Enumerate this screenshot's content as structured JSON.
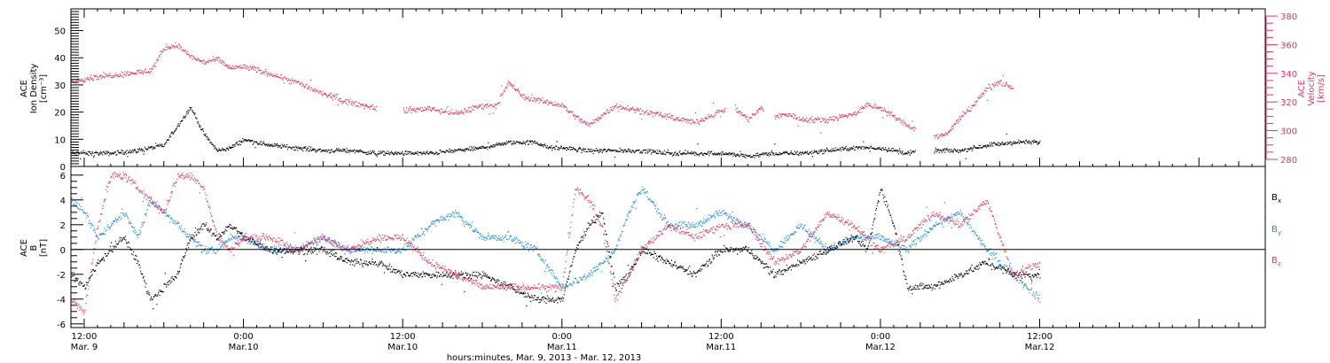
{
  "colors": {
    "black": "#000000",
    "red": "#e0375f",
    "blue": "#1f87e0",
    "axis": "#000000"
  },
  "x_axis": {
    "label": "hours:minutes, Mar. 9, 2013 - Mar. 12, 2013",
    "range_hours": [
      -1,
      89
    ],
    "ticks": [
      {
        "hours": 0,
        "time": "12:00",
        "date": "Mar. 9"
      },
      {
        "hours": 12,
        "time": "0:00",
        "date": "Mar.10"
      },
      {
        "hours": 24,
        "time": "12:00",
        "date": "Mar.10"
      },
      {
        "hours": 36,
        "time": "0:00",
        "date": "Mar.11"
      },
      {
        "hours": 48,
        "time": "12:00",
        "date": "Mar.11"
      },
      {
        "hours": 60,
        "time": "0:00",
        "date": "Mar.12"
      },
      {
        "hours": 72,
        "time": "12:00",
        "date": "Mar.12"
      }
    ]
  },
  "chart_data": [
    {
      "type": "scatter",
      "panel": "top",
      "ylabel_left": [
        "ACE",
        "Ion Density",
        "[cm⁻³]"
      ],
      "ylabel_right": [
        "ACE",
        "Velocity",
        "[km/s]"
      ],
      "y_left": {
        "ylim": [
          0,
          58
        ],
        "ticks": [
          0,
          10,
          20,
          30,
          40,
          50
        ]
      },
      "y_right": {
        "ylim": [
          275,
          385
        ],
        "ticks": [
          280,
          300,
          320,
          340,
          360,
          380
        ]
      },
      "series": [
        {
          "key": "density",
          "color": "black",
          "axis": "left",
          "x": [
            -1,
            2,
            4,
            6,
            8,
            9,
            10,
            11,
            12,
            14,
            16,
            18,
            20,
            22,
            24,
            26,
            28,
            30,
            32,
            34,
            35,
            36,
            38,
            40,
            42,
            44,
            46,
            48,
            50,
            52,
            54,
            56,
            58,
            60,
            62,
            64,
            66,
            68,
            70,
            72
          ],
          "y": [
            5,
            5,
            6,
            8,
            22,
            12,
            6,
            7,
            10,
            8,
            7,
            6,
            6,
            5,
            5,
            5,
            6,
            7,
            9,
            9,
            7,
            7,
            6,
            6,
            6,
            5,
            5,
            5,
            4,
            5,
            5,
            6,
            7,
            7,
            5,
            6,
            6,
            8,
            9,
            9
          ],
          "gaps": [
            [
              62.6,
              64.0
            ]
          ]
        },
        {
          "key": "velocity",
          "color": "red",
          "axis": "right",
          "x": [
            -1,
            1,
            3,
            5,
            6,
            7,
            8,
            9,
            10,
            11,
            12,
            14,
            16,
            18,
            20,
            22,
            24,
            26,
            28,
            30,
            31,
            32,
            33,
            34,
            36,
            37,
            38,
            40,
            42,
            44,
            46,
            48,
            49,
            50,
            51,
            52,
            53,
            54,
            56,
            58,
            59,
            60,
            61,
            62,
            63,
            64,
            65,
            66,
            67,
            68,
            69,
            70
          ],
          "y": [
            335,
            338,
            340,
            342,
            358,
            360,
            352,
            348,
            350,
            344,
            345,
            340,
            334,
            326,
            320,
            316,
            314,
            316,
            312,
            318,
            318,
            334,
            324,
            322,
            318,
            310,
            304,
            318,
            314,
            310,
            306,
            314,
            316,
            308,
            316,
            310,
            312,
            308,
            308,
            312,
            318,
            316,
            310,
            304,
            300,
            296,
            298,
            310,
            318,
            330,
            334,
            330
          ],
          "gaps": [
            [
              22.0,
              24.0
            ],
            [
              48.3,
              49.0
            ],
            [
              51.2,
              52.0
            ],
            [
              62.6,
              64.0
            ]
          ]
        }
      ]
    },
    {
      "type": "scatter",
      "panel": "bottom",
      "ylabel_left": [
        "ACE",
        "B",
        "[nT]"
      ],
      "y_left": {
        "ylim": [
          -6.3,
          6.7
        ],
        "ticks": [
          -6,
          -4,
          -2,
          0,
          2,
          4,
          6
        ]
      },
      "legend": [
        {
          "label": "B",
          "sub": "x",
          "color": "black"
        },
        {
          "label": "B",
          "sub": "y",
          "color": "blue"
        },
        {
          "label": "B",
          "sub": "z",
          "color": "red"
        }
      ],
      "legend_position": "right",
      "series": [
        {
          "key": "bx",
          "color": "black",
          "x": [
            -1,
            0,
            1,
            2,
            3,
            4,
            5,
            6,
            7,
            8,
            9,
            10,
            11,
            12,
            14,
            16,
            18,
            20,
            22,
            24,
            26,
            28,
            30,
            32,
            34,
            36,
            37,
            38,
            39,
            40,
            41,
            42,
            44,
            46,
            48,
            50,
            52,
            54,
            56,
            58,
            59,
            60,
            61,
            62,
            64,
            66,
            68,
            70,
            72
          ],
          "y": [
            -2,
            -3,
            -1,
            0,
            1,
            -1,
            -4,
            -3,
            -2,
            1,
            2,
            1,
            2,
            1,
            0,
            0,
            0,
            -1,
            -1,
            -2,
            -2,
            -2,
            -2,
            -3,
            -4,
            -4,
            0,
            2,
            3,
            -3,
            -2,
            0,
            -1,
            -2,
            0,
            0,
            -2,
            -1,
            0,
            1,
            0,
            5,
            2,
            -3,
            -3,
            -2,
            -1,
            -2,
            -2
          ],
          "gaps": []
        },
        {
          "key": "by",
          "color": "blue",
          "x": [
            -1,
            0,
            1,
            2,
            3,
            4,
            5,
            6,
            7,
            8,
            9,
            10,
            11,
            12,
            14,
            16,
            18,
            20,
            22,
            24,
            26,
            28,
            30,
            32,
            34,
            36,
            38,
            40,
            41,
            42,
            44,
            46,
            48,
            50,
            52,
            54,
            56,
            58,
            60,
            62,
            64,
            66,
            68,
            70,
            72
          ],
          "y": [
            4,
            3,
            1,
            2,
            3,
            1,
            4,
            3,
            2,
            1,
            0,
            0,
            1,
            1,
            0,
            0,
            1,
            0,
            0,
            0,
            2,
            3,
            1,
            1,
            0,
            -3,
            -2,
            0,
            3,
            5,
            2,
            2,
            3,
            2,
            0,
            2,
            0,
            1,
            1,
            0,
            2,
            3,
            0,
            -2,
            -4
          ],
          "gaps": []
        },
        {
          "key": "bz",
          "color": "red",
          "x": [
            -1,
            0,
            1,
            2,
            3,
            4,
            5,
            6,
            7,
            8,
            9,
            10,
            11,
            12,
            14,
            16,
            18,
            20,
            22,
            24,
            26,
            28,
            30,
            32,
            33,
            34,
            36,
            37,
            38,
            39,
            40,
            42,
            44,
            46,
            48,
            50,
            52,
            54,
            56,
            58,
            60,
            62,
            64,
            66,
            68,
            70,
            72
          ],
          "y": [
            -4,
            -5,
            2,
            6,
            6,
            5,
            4,
            3,
            6,
            6,
            5,
            1,
            0,
            1,
            1,
            0,
            1,
            0,
            1,
            1,
            -1,
            -2,
            -3,
            -3,
            -3,
            -3,
            -3,
            5,
            4,
            2,
            -4,
            0,
            2,
            1,
            2,
            2,
            -1,
            0,
            3,
            2,
            0,
            1,
            3,
            2,
            4,
            -2,
            -1
          ],
          "gaps": []
        }
      ]
    }
  ]
}
